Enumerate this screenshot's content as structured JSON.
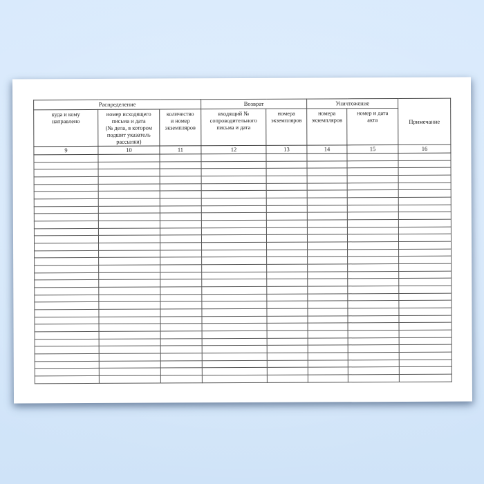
{
  "table": {
    "groups": [
      {
        "label": "Распределение",
        "colspan": 3
      },
      {
        "label": "Возврат",
        "colspan": 2
      },
      {
        "label": "Уничтожение",
        "colspan": 2
      }
    ],
    "columns": [
      {
        "number": "9",
        "header": "куда и кому\nнаправлено"
      },
      {
        "number": "10",
        "header": "номер исходящего\nписьма и дата\n(№ дела, в котором\nподшит указатель\nрассылки)"
      },
      {
        "number": "11",
        "header": "количество\nи номер\nэкземпляров"
      },
      {
        "number": "12",
        "header": "входящий №\nсопроводительного\nписьма и дата"
      },
      {
        "number": "13",
        "header": "номера\nэкземпляров"
      },
      {
        "number": "14",
        "header": "номера\nэкземпляров"
      },
      {
        "number": "15",
        "header": "номер и дата\nакта"
      },
      {
        "number": "16",
        "header": "Примечание"
      }
    ],
    "empty_row_count": 31
  },
  "colors": {
    "background_top": "#d9eafc",
    "background_bottom": "#cfe3f8",
    "paper": "#ffffff",
    "grid_border": "#4d4d4d",
    "text": "#1c1c1c"
  }
}
